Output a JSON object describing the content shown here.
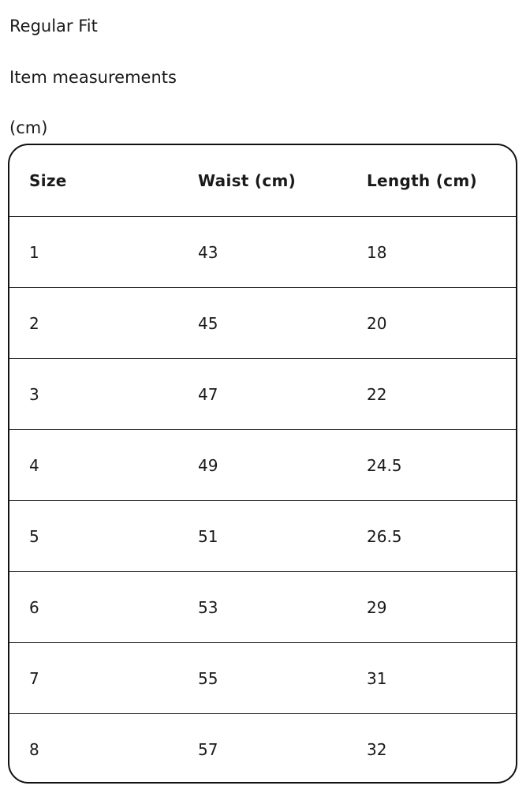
{
  "fit": "Regular Fit",
  "section_title": "Item measurements",
  "unit": "(cm)",
  "table": {
    "headers": [
      "Size",
      "Waist (cm)",
      "Length (cm)"
    ],
    "rows": [
      [
        "1",
        "43",
        "18"
      ],
      [
        "2",
        "45",
        "20"
      ],
      [
        "3",
        "47",
        "22"
      ],
      [
        "4",
        "49",
        "24.5"
      ],
      [
        "5",
        "51",
        "26.5"
      ],
      [
        "6",
        "53",
        "29"
      ],
      [
        "7",
        "55",
        "31"
      ],
      [
        "8",
        "57",
        "32"
      ]
    ]
  }
}
